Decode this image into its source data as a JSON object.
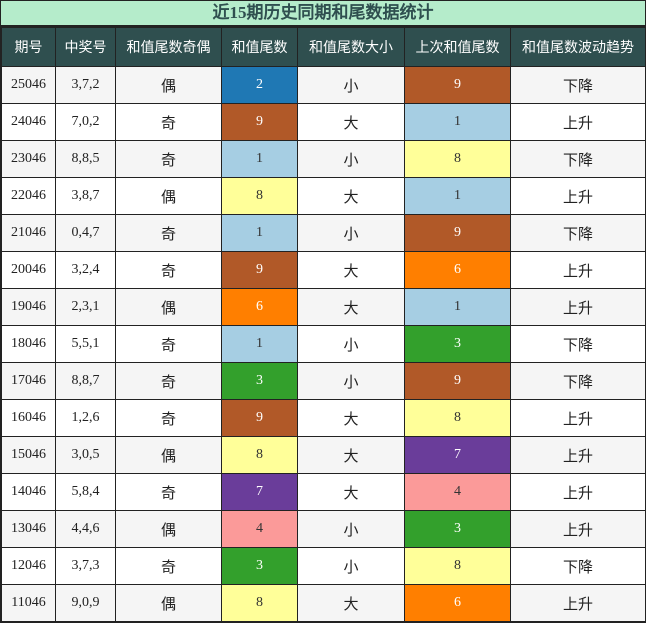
{
  "title": "近15期历史同期和尾数据统计",
  "headers": [
    "期号",
    "中奖号",
    "和值尾数奇偶",
    "和值尾数",
    "和值尾数大小",
    "上次和值尾数",
    "和值尾数波动趋势"
  ],
  "digit_colors": {
    "1": "#a6cee3",
    "2": "#1f78b4",
    "3": "#33a02c",
    "4": "#fb9a99",
    "6": "#ff7f00",
    "7": "#6a3d9a",
    "8": "#ffff99",
    "9": "#b15928"
  },
  "rows": [
    [
      "25046",
      "3,7,2",
      "偶",
      "2",
      "小",
      "9",
      "下降"
    ],
    [
      "24046",
      "7,0,2",
      "奇",
      "9",
      "大",
      "1",
      "上升"
    ],
    [
      "23046",
      "8,8,5",
      "奇",
      "1",
      "小",
      "8",
      "下降"
    ],
    [
      "22046",
      "3,8,7",
      "偶",
      "8",
      "大",
      "1",
      "上升"
    ],
    [
      "21046",
      "0,4,7",
      "奇",
      "1",
      "小",
      "9",
      "下降"
    ],
    [
      "20046",
      "3,2,4",
      "奇",
      "9",
      "大",
      "6",
      "上升"
    ],
    [
      "19046",
      "2,3,1",
      "偶",
      "6",
      "大",
      "1",
      "上升"
    ],
    [
      "18046",
      "5,5,1",
      "奇",
      "1",
      "小",
      "3",
      "下降"
    ],
    [
      "17046",
      "8,8,7",
      "奇",
      "3",
      "小",
      "9",
      "下降"
    ],
    [
      "16046",
      "1,2,6",
      "奇",
      "9",
      "大",
      "8",
      "上升"
    ],
    [
      "15046",
      "3,0,5",
      "偶",
      "8",
      "大",
      "7",
      "上升"
    ],
    [
      "14046",
      "5,8,4",
      "奇",
      "7",
      "大",
      "4",
      "上升"
    ],
    [
      "13046",
      "4,4,6",
      "偶",
      "4",
      "小",
      "3",
      "上升"
    ],
    [
      "12046",
      "3,7,3",
      "奇",
      "3",
      "小",
      "8",
      "下降"
    ],
    [
      "11046",
      "9,0,9",
      "偶",
      "8",
      "大",
      "6",
      "上升"
    ]
  ]
}
